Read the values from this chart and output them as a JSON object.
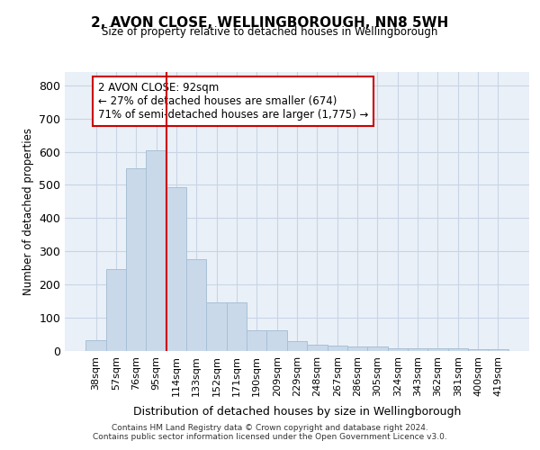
{
  "title_line1": "2, AVON CLOSE, WELLINGBOROUGH, NN8 5WH",
  "title_line2": "Size of property relative to detached houses in Wellingborough",
  "xlabel": "Distribution of detached houses by size in Wellingborough",
  "ylabel": "Number of detached properties",
  "bar_labels": [
    "38sqm",
    "57sqm",
    "76sqm",
    "95sqm",
    "114sqm",
    "133sqm",
    "152sqm",
    "171sqm",
    "190sqm",
    "209sqm",
    "229sqm",
    "248sqm",
    "267sqm",
    "286sqm",
    "305sqm",
    "324sqm",
    "343sqm",
    "362sqm",
    "381sqm",
    "400sqm",
    "419sqm"
  ],
  "bar_values": [
    33,
    247,
    549,
    605,
    493,
    277,
    147,
    147,
    62,
    62,
    31,
    20,
    15,
    13,
    13,
    7,
    7,
    7,
    7,
    5,
    5
  ],
  "bar_color": "#c9d9ea",
  "bar_edge_color": "#a8c0d6",
  "vline_x": 3.5,
  "vline_color": "#cc0000",
  "annotation_text": "2 AVON CLOSE: 92sqm\n← 27% of detached houses are smaller (674)\n71% of semi-detached houses are larger (1,775) →",
  "annotation_box_color": "#ffffff",
  "annotation_box_edge": "#cc0000",
  "ylim": [
    0,
    840
  ],
  "yticks": [
    0,
    100,
    200,
    300,
    400,
    500,
    600,
    700,
    800
  ],
  "grid_color": "#c8d4e4",
  "footnote": "Contains HM Land Registry data © Crown copyright and database right 2024.\nContains public sector information licensed under the Open Government Licence v3.0.",
  "bg_color": "#eaf0f8"
}
